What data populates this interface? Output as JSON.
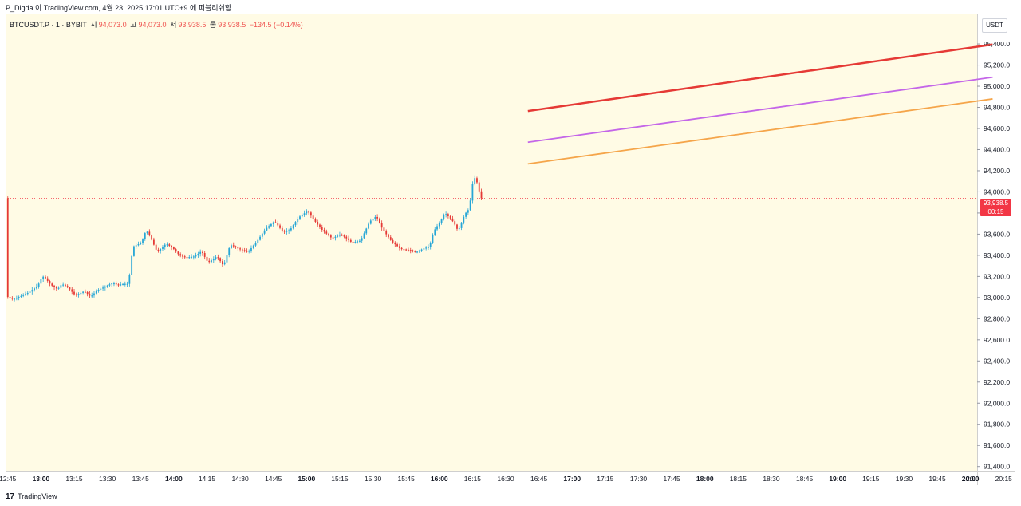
{
  "header": {
    "attribution": "P_Digda 이 TradingView.com, 4월 23, 2025 17:01 UTC+9 에 퍼블리쉬함"
  },
  "legend": {
    "symbol": "BTCUSDT.P · 1 · BYBIT",
    "open_label": "시",
    "open": "94,073.0",
    "high_label": "고",
    "high": "94,073.0",
    "low_label": "저",
    "low": "93,938.5",
    "close_label": "종",
    "close": "93,938.5",
    "change": "−134.5 (−0.14%)"
  },
  "price_axis": {
    "currency": "USDT"
  },
  "last_price": {
    "price": "93,938.5",
    "countdown": "00:15"
  },
  "footer": {
    "logo_glyph": "17",
    "brand": "TradingView"
  },
  "colors": {
    "background": "#fffbe5",
    "up": "#26a6d6",
    "down": "#e53935",
    "line_red": "#e53935",
    "line_purple": "#c466e8",
    "line_orange": "#f5a54a",
    "last_price": "#f23645"
  },
  "chart_data": {
    "type": "candlestick",
    "symbol": "BTCUSDT.P",
    "interval": "1",
    "exchange": "BYBIT",
    "x_ticks": [
      "12:45",
      "13:00",
      "13:15",
      "13:30",
      "13:45",
      "14:00",
      "14:15",
      "14:30",
      "14:45",
      "15:00",
      "15:15",
      "15:30",
      "15:45",
      "16:00",
      "16:15",
      "16:30",
      "16:45",
      "17:00",
      "17:15",
      "17:30",
      "17:45",
      "18:00",
      "18:15",
      "18:30",
      "18:45",
      "19:00",
      "19:15",
      "19:30",
      "19:45",
      "20:00",
      "20:15",
      "20:"
    ],
    "x_ticks_bold": [
      "13:00",
      "14:00",
      "15:00",
      "16:00",
      "17:00",
      "18:00",
      "19:00",
      "20:00"
    ],
    "y_ticks": [
      "95,400.0",
      "95,200.0",
      "95,000.0",
      "94,800.0",
      "94,600.0",
      "94,400.0",
      "94,200.0",
      "94,000.0",
      "93,800.0",
      "93,600.0",
      "93,400.0",
      "93,200.0",
      "93,000.0",
      "92,800.0",
      "92,600.0",
      "92,400.0",
      "92,200.0",
      "92,000.0",
      "91,800.0",
      "91,600.0",
      "91,400.0"
    ],
    "ylim": [
      91360,
      95680
    ],
    "xlim_minutes": [
      764,
      1203
    ],
    "last_price": 93938.5,
    "price_path": [
      [
        765,
        93010
      ],
      [
        768,
        92985
      ],
      [
        772,
        93020
      ],
      [
        775,
        93050
      ],
      [
        779,
        93110
      ],
      [
        781,
        93200
      ],
      [
        782,
        93195
      ],
      [
        785,
        93120
      ],
      [
        788,
        93080
      ],
      [
        790,
        93130
      ],
      [
        793,
        93090
      ],
      [
        796,
        93020
      ],
      [
        800,
        93060
      ],
      [
        803,
        93010
      ],
      [
        806,
        93070
      ],
      [
        810,
        93110
      ],
      [
        813,
        93140
      ],
      [
        815,
        93120
      ],
      [
        818,
        93130
      ],
      [
        820,
        93130
      ],
      [
        822,
        93480
      ],
      [
        826,
        93520
      ],
      [
        828,
        93640
      ],
      [
        830,
        93570
      ],
      [
        833,
        93430
      ],
      [
        837,
        93510
      ],
      [
        840,
        93470
      ],
      [
        843,
        93400
      ],
      [
        846,
        93380
      ],
      [
        850,
        93390
      ],
      [
        853,
        93440
      ],
      [
        856,
        93330
      ],
      [
        860,
        93390
      ],
      [
        863,
        93300
      ],
      [
        866,
        93500
      ],
      [
        870,
        93460
      ],
      [
        874,
        93430
      ],
      [
        878,
        93530
      ],
      [
        882,
        93650
      ],
      [
        886,
        93720
      ],
      [
        890,
        93620
      ],
      [
        893,
        93640
      ],
      [
        897,
        93760
      ],
      [
        901,
        93820
      ],
      [
        904,
        93730
      ],
      [
        907,
        93650
      ],
      [
        912,
        93560
      ],
      [
        916,
        93600
      ],
      [
        921,
        93520
      ],
      [
        925,
        93540
      ],
      [
        929,
        93720
      ],
      [
        932,
        93770
      ],
      [
        935,
        93640
      ],
      [
        939,
        93530
      ],
      [
        943,
        93460
      ],
      [
        947,
        93450
      ],
      [
        950,
        93430
      ],
      [
        954,
        93470
      ],
      [
        956,
        93480
      ],
      [
        958,
        93630
      ],
      [
        961,
        93720
      ],
      [
        963,
        93800
      ],
      [
        965,
        93760
      ],
      [
        967,
        93710
      ],
      [
        969,
        93630
      ],
      [
        972,
        93790
      ],
      [
        974,
        93840
      ],
      [
        976,
        94150
      ],
      [
        978,
        94070
      ],
      [
        979,
        93940
      ]
    ],
    "trend_lines": [
      {
        "color": "red",
        "points": [
          [
            1000,
            94765
          ],
          [
            1210,
            95395
          ]
        ]
      },
      {
        "color": "purple",
        "points": [
          [
            1000,
            94470
          ],
          [
            1210,
            95085
          ]
        ]
      },
      {
        "color": "orange",
        "points": [
          [
            1000,
            94265
          ],
          [
            1210,
            94880
          ]
        ]
      }
    ]
  }
}
